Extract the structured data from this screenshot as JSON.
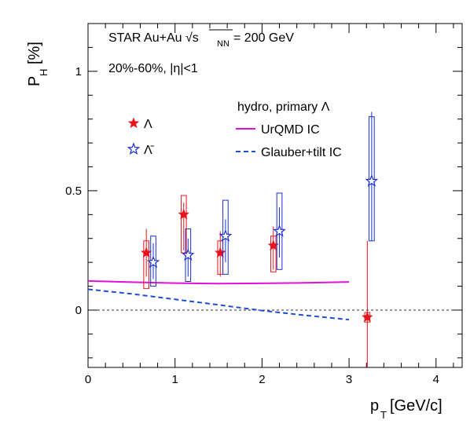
{
  "chart_data": {
    "type": "scatter",
    "xlabel": "p",
    "xlabel_sub": "T",
    "xlabel_unit": "[GeV/c]",
    "ylabel": "P",
    "ylabel_sub": "H",
    "ylabel_unit": "[%]",
    "xlim": [
      0,
      4.3
    ],
    "ylim": [
      -0.24,
      1.2
    ],
    "x_ticks": [
      {
        "v": 0,
        "label": "0"
      },
      {
        "v": 1,
        "label": "1"
      },
      {
        "v": 2,
        "label": "2"
      },
      {
        "v": 3,
        "label": "3"
      },
      {
        "v": 4,
        "label": "4"
      }
    ],
    "y_ticks": [
      {
        "v": 0,
        "label": "0"
      },
      {
        "v": 0.5,
        "label": "0.5"
      },
      {
        "v": 1,
        "label": "1"
      }
    ],
    "annotations": {
      "experiment": "STAR Au+Au √s",
      "energy_sub": "NN",
      "energy_value": "= 200 GeV",
      "centrality": "20%-60%, |η|<1",
      "model_header": "hydro, primary Λ"
    },
    "colors": {
      "lambda": "#e8141c",
      "antilambda": "#1a2fd8",
      "urqmd": "#e010d8",
      "glauber": "#1f4fd6",
      "zero_line": "#333333"
    },
    "series": [
      {
        "name": "Λ",
        "marker": "filled-star",
        "points": [
          {
            "x": 0.67,
            "y": 0.24,
            "stat": [
              0.14,
              0.34
            ],
            "sys": [
              0.09,
              0.29
            ],
            "sys_half_width": 0.03
          },
          {
            "x": 1.1,
            "y": 0.4,
            "stat": [
              0.25,
              0.45
            ],
            "sys": [
              0.24,
              0.48
            ],
            "sys_half_width": 0.03
          },
          {
            "x": 1.52,
            "y": 0.24,
            "stat": [
              0.14,
              0.33
            ],
            "sys": [
              0.15,
              0.29
            ],
            "sys_half_width": 0.03
          },
          {
            "x": 2.13,
            "y": 0.27,
            "stat": [
              0.17,
              0.35
            ],
            "sys": [
              0.16,
              0.31
            ],
            "sys_half_width": 0.03
          },
          {
            "x": 3.21,
            "y": -0.03,
            "stat": [
              -0.24,
              0.29
            ],
            "sys": [
              -0.05,
              -0.01
            ],
            "sys_half_width": 0.03
          }
        ]
      },
      {
        "name": "Λ̄",
        "marker": "open-star",
        "points": [
          {
            "x": 0.75,
            "y": 0.2,
            "stat": [
              0.13,
              0.28
            ],
            "sys": [
              0.1,
              0.31
            ],
            "sys_half_width": 0.03
          },
          {
            "x": 1.15,
            "y": 0.23,
            "stat": [
              0.14,
              0.3
            ],
            "sys": [
              0.12,
              0.34
            ],
            "sys_half_width": 0.03
          },
          {
            "x": 1.58,
            "y": 0.31,
            "stat": [
              0.2,
              0.38
            ],
            "sys": [
              0.15,
              0.46
            ],
            "sys_half_width": 0.03
          },
          {
            "x": 2.2,
            "y": 0.33,
            "stat": [
              0.22,
              0.43
            ],
            "sys": [
              0.17,
              0.49
            ],
            "sys_half_width": 0.03
          },
          {
            "x": 3.26,
            "y": 0.54,
            "stat": [
              0.29,
              0.83
            ],
            "sys": [
              0.29,
              0.81
            ],
            "sys_half_width": 0.03
          }
        ]
      }
    ],
    "curves": [
      {
        "name": "UrQMD IC",
        "style": "solid",
        "points": [
          [
            0,
            0.122
          ],
          [
            0.5,
            0.117
          ],
          [
            1.0,
            0.113
          ],
          [
            1.5,
            0.111
          ],
          [
            2.0,
            0.112
          ],
          [
            2.5,
            0.114
          ],
          [
            3.0,
            0.118
          ]
        ]
      },
      {
        "name": "Glauber+tilt IC",
        "style": "dashed",
        "points": [
          [
            0,
            0.087
          ],
          [
            0.5,
            0.068
          ],
          [
            1.0,
            0.045
          ],
          [
            1.5,
            0.022
          ],
          [
            2.0,
            -0.002
          ],
          [
            2.5,
            -0.022
          ],
          [
            3.0,
            -0.04
          ]
        ]
      }
    ]
  }
}
